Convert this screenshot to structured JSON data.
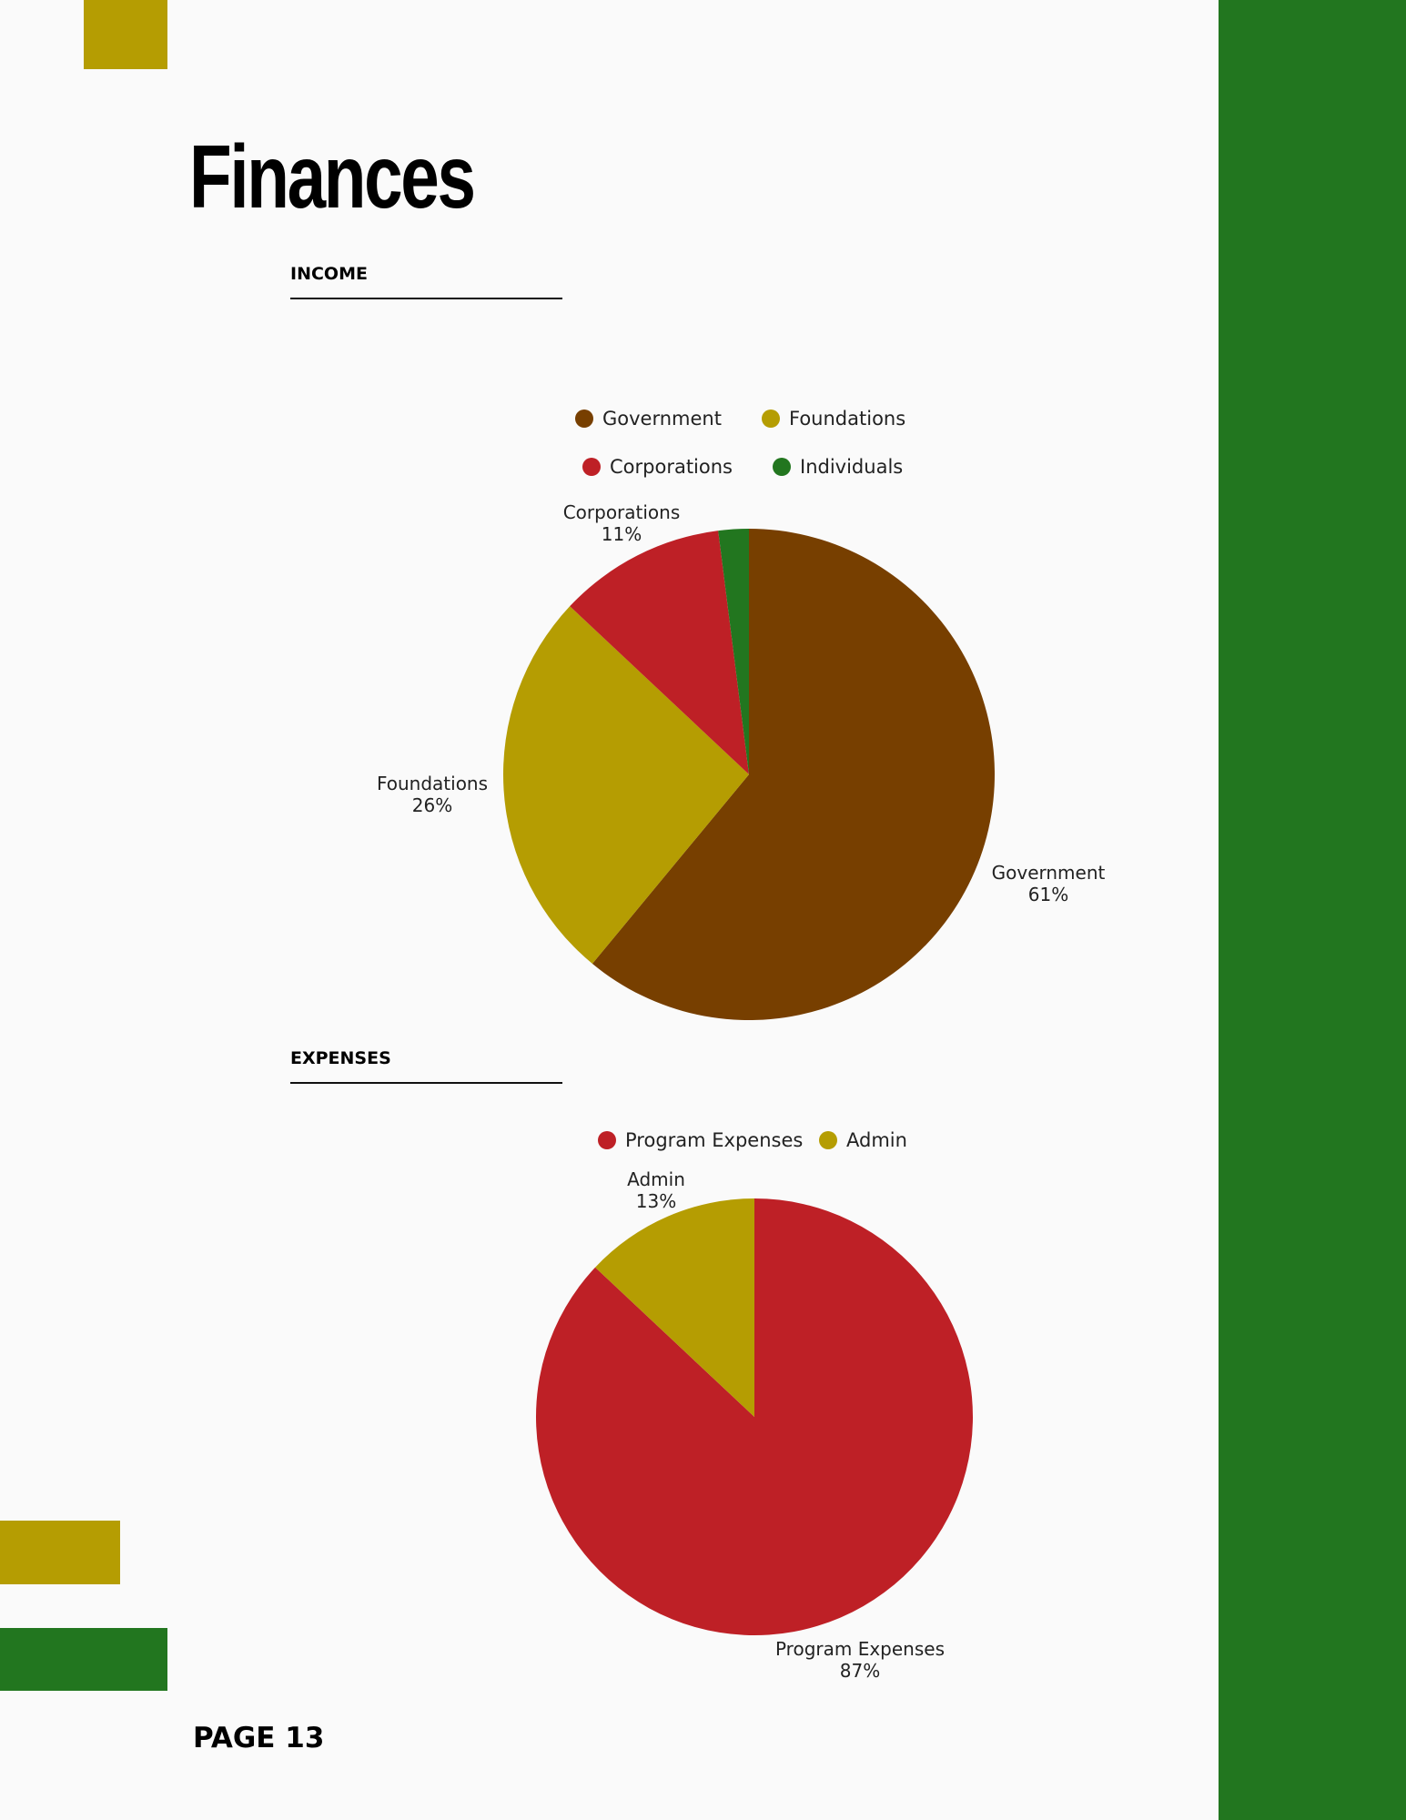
{
  "title": "Finances",
  "colors": {
    "background": "#fafafa",
    "green": "#22761f",
    "yellow": "#b59d02",
    "brown": "#773f00",
    "red": "#be2026"
  },
  "income": {
    "heading": "INCOME",
    "legend": [
      {
        "label": "Government",
        "color": "#773f00"
      },
      {
        "label": "Foundations",
        "color": "#b59d02"
      },
      {
        "label": "Corporations",
        "color": "#be2026"
      },
      {
        "label": "Individuals",
        "color": "#22761f"
      }
    ]
  },
  "expenses": {
    "heading": "EXPENSES",
    "legend": [
      {
        "label": "Program Expenses",
        "color": "#be2026"
      },
      {
        "label": "Admin",
        "color": "#b59d02"
      }
    ]
  },
  "chart_data": [
    {
      "type": "pie",
      "categories": [
        "Government",
        "Foundations",
        "Corporations",
        "Individuals"
      ],
      "values": [
        61,
        26,
        11,
        2
      ],
      "data_labels": [
        "61%",
        "26%",
        "11%",
        ""
      ],
      "colors": [
        "#773f00",
        "#b59d02",
        "#be2026",
        "#22761f"
      ],
      "legend": "top"
    },
    {
      "type": "pie",
      "categories": [
        "Program Expenses",
        "Admin"
      ],
      "values": [
        87,
        13
      ],
      "data_labels": [
        "87%",
        "13%"
      ],
      "colors": [
        "#be2026",
        "#b59d02"
      ],
      "legend": "top"
    }
  ],
  "footer": {
    "page_label": "PAGE 13"
  }
}
